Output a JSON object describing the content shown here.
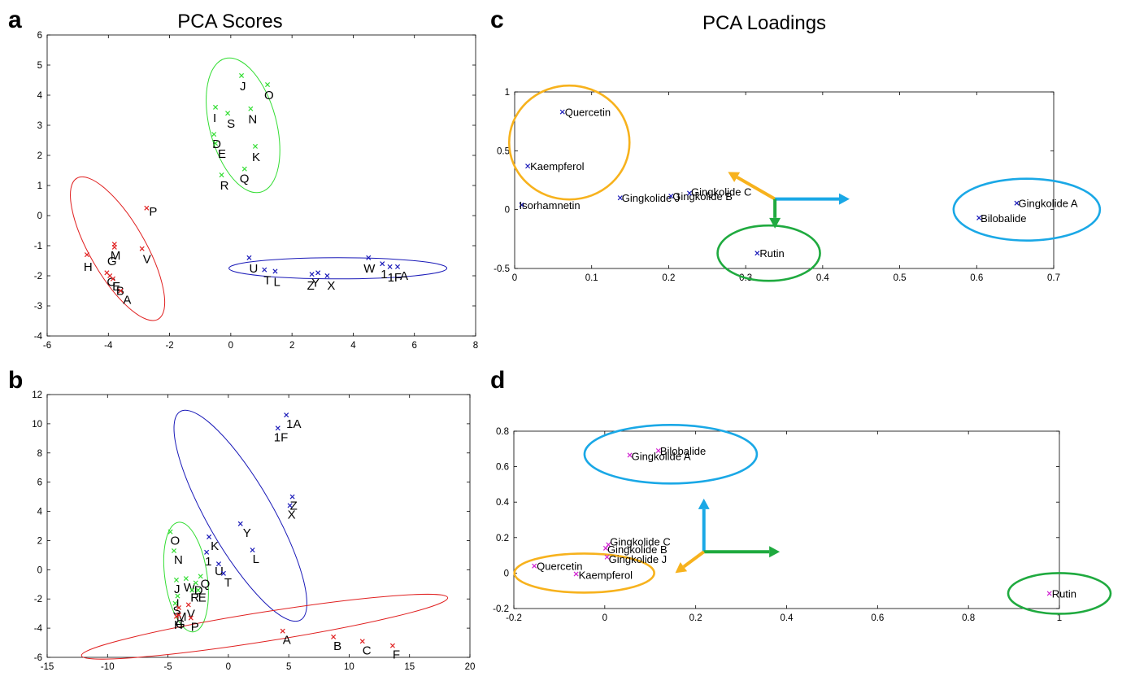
{
  "figure": {
    "panel_letters": [
      "a",
      "b",
      "c",
      "d"
    ],
    "titles": {
      "scores": "PCA Scores",
      "loadings": "PCA Loadings"
    }
  },
  "colors": {
    "red": "#e02020",
    "green": "#33dd33",
    "blue": "#1a1ab8",
    "magenta": "#d020d0",
    "orange": "#f7b21d",
    "cyan": "#1aa8e6",
    "dark_green": "#1faa3f"
  },
  "chart_data": [
    {
      "panel": "a",
      "type": "scatter",
      "title": "PCA Scores",
      "xlim": [
        -6,
        8
      ],
      "ylim": [
        -4,
        6
      ],
      "xticks": [
        -6,
        -4,
        -2,
        0,
        2,
        4,
        6,
        8
      ],
      "yticks": [
        -4,
        -3,
        -2,
        -1,
        0,
        1,
        2,
        3,
        4,
        5,
        6
      ],
      "series": [
        {
          "color": "red",
          "points": [
            {
              "label": "P",
              "x": -2.75,
              "y": 0.25
            },
            {
              "label": "M",
              "x": -3.8,
              "y": -0.95
            },
            {
              "label": "G",
              "x": -3.8,
              "y": -1.05
            },
            {
              "label": "V",
              "x": -2.9,
              "y": -1.1
            },
            {
              "label": "H",
              "x": -4.7,
              "y": -1.3
            },
            {
              "label": "C",
              "x": -4.05,
              "y": -1.9
            },
            {
              "label": "E",
              "x": -3.95,
              "y": -2.0
            },
            {
              "label": "B",
              "x": -3.85,
              "y": -2.1
            },
            {
              "label": "A",
              "x": -3.6,
              "y": -2.5
            }
          ]
        },
        {
          "color": "green",
          "points": [
            {
              "label": "J",
              "x": 0.35,
              "y": 4.65
            },
            {
              "label": "O",
              "x": 1.2,
              "y": 4.35
            },
            {
              "label": "I",
              "x": -0.5,
              "y": 3.6
            },
            {
              "label": "S",
              "x": -0.1,
              "y": 3.4
            },
            {
              "label": "N",
              "x": 0.65,
              "y": 3.55
            },
            {
              "label": "D",
              "x": -0.55,
              "y": 2.7
            },
            {
              "label": "E",
              "x": -0.5,
              "y": 2.4
            },
            {
              "label": "K",
              "x": 0.8,
              "y": 2.3
            },
            {
              "label": "Q",
              "x": 0.45,
              "y": 1.55
            },
            {
              "label": "R",
              "x": -0.3,
              "y": 1.35
            }
          ]
        },
        {
          "color": "blue",
          "points": [
            {
              "label": "U",
              "x": 0.6,
              "y": -1.4
            },
            {
              "label": "T",
              "x": 1.1,
              "y": -1.8
            },
            {
              "label": "L",
              "x": 1.45,
              "y": -1.85
            },
            {
              "label": "Z",
              "x": 2.65,
              "y": -1.95
            },
            {
              "label": "Y",
              "x": 2.85,
              "y": -1.9
            },
            {
              "label": "X",
              "x": 3.15,
              "y": -2.0
            },
            {
              "label": "W",
              "x": 4.5,
              "y": -1.4
            },
            {
              "label": "1",
              "x": 4.95,
              "y": -1.6
            },
            {
              "label": "1F",
              "x": 5.2,
              "y": -1.7
            },
            {
              "label": "A",
              "x": 5.45,
              "y": -1.7
            }
          ]
        }
      ],
      "ellipses": [
        "red",
        "green",
        "blue"
      ]
    },
    {
      "panel": "b",
      "type": "scatter",
      "xlim": [
        -15,
        20
      ],
      "ylim": [
        -6,
        12
      ],
      "xticks": [
        -15,
        -10,
        -5,
        0,
        5,
        10,
        15,
        20
      ],
      "yticks": [
        -6,
        -4,
        -2,
        0,
        2,
        4,
        6,
        8,
        10,
        12
      ],
      "series": [
        {
          "color": "blue",
          "points": [
            {
              "label": "1A",
              "x": 4.8,
              "y": 10.6
            },
            {
              "label": "1F",
              "x": 4.1,
              "y": 9.7
            },
            {
              "label": "Z",
              "x": 5.3,
              "y": 5.0
            },
            {
              "label": "X",
              "x": 5.1,
              "y": 4.4
            },
            {
              "label": "Y",
              "x": 1.0,
              "y": 3.15
            },
            {
              "label": "L",
              "x": 2.0,
              "y": 1.35
            },
            {
              "label": "K",
              "x": -1.6,
              "y": 2.25
            },
            {
              "label": "1",
              "x": -1.8,
              "y": 1.2
            },
            {
              "label": "U",
              "x": -0.8,
              "y": 0.4
            },
            {
              "label": "T",
              "x": -0.4,
              "y": -0.25
            }
          ]
        },
        {
          "color": "green",
          "points": [
            {
              "label": "O",
              "x": -4.8,
              "y": 2.6
            },
            {
              "label": "N",
              "x": -4.5,
              "y": 1.3
            },
            {
              "label": "J",
              "x": -4.3,
              "y": -0.7
            },
            {
              "label": "W",
              "x": -3.5,
              "y": -0.6
            },
            {
              "label": "Q",
              "x": -2.3,
              "y": -0.45
            },
            {
              "label": "D",
              "x": -2.7,
              "y": -0.9
            },
            {
              "label": "R",
              "x": -3.0,
              "y": -1.4
            },
            {
              "label": "E",
              "x": -2.5,
              "y": -1.4
            },
            {
              "label": "I",
              "x": -4.2,
              "y": -1.8
            },
            {
              "label": "S",
              "x": -4.4,
              "y": -2.3
            }
          ]
        },
        {
          "color": "red",
          "points": [
            {
              "label": "M",
              "x": -4.1,
              "y": -2.6
            },
            {
              "label": "V",
              "x": -3.3,
              "y": -2.4
            },
            {
              "label": "G",
              "x": -4.1,
              "y": -3.1
            },
            {
              "label": "H",
              "x": -4.3,
              "y": -3.2
            },
            {
              "label": "P",
              "x": -3.1,
              "y": -3.3
            },
            {
              "label": "A",
              "x": 4.5,
              "y": -4.2
            },
            {
              "label": "B",
              "x": 8.7,
              "y": -4.6
            },
            {
              "label": "C",
              "x": 11.1,
              "y": -4.9
            },
            {
              "label": "F",
              "x": 13.6,
              "y": -5.2
            }
          ]
        }
      ],
      "ellipses": [
        "green",
        "blue",
        "red"
      ]
    },
    {
      "panel": "c",
      "type": "scatter",
      "title": "PCA Loadings",
      "xlim": [
        0,
        0.7
      ],
      "ylim": [
        -0.5,
        1
      ],
      "xticks": [
        "0",
        "0.1",
        "0.2",
        "0.3",
        "0.4",
        "0.5",
        "0.6",
        "0.7"
      ],
      "yticks": [
        "-0.5",
        "0",
        "0.5",
        "1"
      ],
      "series": [
        {
          "color": "blue",
          "points": [
            {
              "label": "Quercetin",
              "x": 0.062,
              "y": 0.83
            },
            {
              "label": "Kaempferol",
              "x": 0.017,
              "y": 0.37
            },
            {
              "label": "Isorhamnetin",
              "x": 0.009,
              "y": 0.04
            },
            {
              "label": "Gingkolide J",
              "x": 0.137,
              "y": 0.1
            },
            {
              "label": "Gingkolide B",
              "x": 0.203,
              "y": 0.115
            },
            {
              "label": "Gingkolide C",
              "x": 0.227,
              "y": 0.14
            },
            {
              "label": "Rutin",
              "x": 0.315,
              "y": -0.37
            },
            {
              "label": "Gingkolide A",
              "x": 0.652,
              "y": 0.055
            },
            {
              "label": "Bilobalide",
              "x": 0.603,
              "y": -0.07
            }
          ]
        }
      ],
      "ellipses": [
        "orange",
        "dark_green",
        "cyan"
      ],
      "arrows": [
        "orange",
        "cyan",
        "dark_green"
      ]
    },
    {
      "panel": "d",
      "type": "scatter",
      "xlim": [
        -0.2,
        1
      ],
      "ylim": [
        -0.2,
        0.8
      ],
      "xticks": [
        "-0.2",
        "0",
        "0.2",
        "0.4",
        "0.6",
        "0.8",
        "1"
      ],
      "yticks": [
        "-0.2",
        "0",
        "0.2",
        "0.4",
        "0.6",
        "0.8"
      ],
      "series": [
        {
          "color": "magenta",
          "points": [
            {
              "label": "Bilobalide",
              "x": 0.118,
              "y": 0.69
            },
            {
              "label": "Gingkolide A",
              "x": 0.055,
              "y": 0.665
            },
            {
              "label": "Gingkolide C",
              "x": 0.008,
              "y": 0.16
            },
            {
              "label": "Gingkolide B",
              "x": 0.002,
              "y": 0.14
            },
            {
              "label": "Gingkolide J",
              "x": 0.005,
              "y": 0.09
            },
            {
              "label": "Quercetin",
              "x": -0.155,
              "y": 0.04
            },
            {
              "label": "Kaempferol",
              "x": -0.063,
              "y": -0.005
            },
            {
              "label": "Rutin",
              "x": 0.978,
              "y": -0.115
            }
          ]
        }
      ],
      "ellipses": [
        "cyan",
        "orange",
        "dark_green"
      ],
      "arrows": [
        "cyan",
        "dark_green",
        "orange"
      ]
    }
  ]
}
